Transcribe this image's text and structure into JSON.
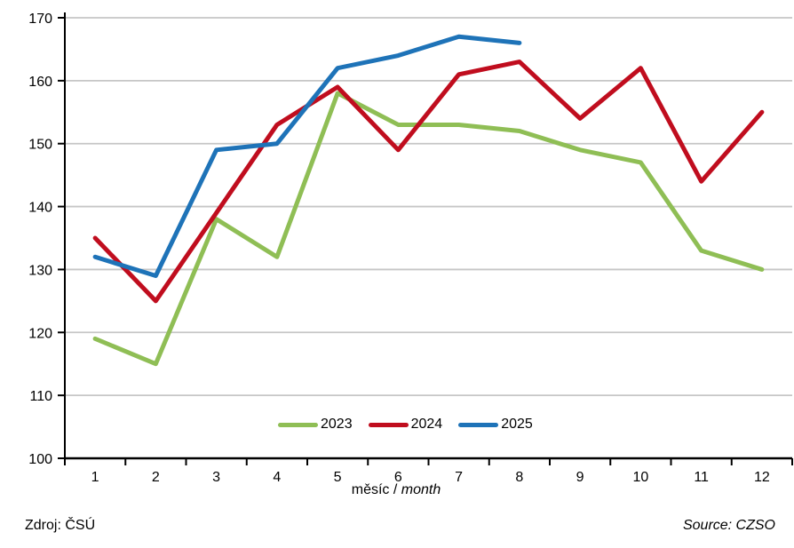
{
  "chart_data": {
    "type": "line",
    "x": [
      1,
      2,
      3,
      4,
      5,
      6,
      7,
      8,
      9,
      10,
      11,
      12
    ],
    "series": [
      {
        "name": "2023",
        "color": "#8FBE55",
        "values": [
          119,
          115,
          138,
          132,
          158,
          153,
          153,
          152,
          149,
          147,
          133,
          130
        ]
      },
      {
        "name": "2024",
        "color": "#C00D1E",
        "values": [
          135,
          125,
          139,
          153,
          159,
          149,
          161,
          163,
          154,
          162,
          144,
          155
        ]
      },
      {
        "name": "2025",
        "color": "#1E73B8",
        "values": [
          132,
          129,
          149,
          150,
          162,
          164,
          167,
          166
        ]
      }
    ],
    "title": "",
    "xlabel": "měsíc / month",
    "xlabel_regular": "měsíc / ",
    "xlabel_italic": "month",
    "ylabel": "",
    "ylim": [
      100,
      170
    ],
    "ytick_step": 10,
    "yticks": [
      100,
      110,
      120,
      130,
      140,
      150,
      160,
      170
    ],
    "grid": true,
    "legend_position": "bottom-center-inside"
  },
  "colors": {
    "gridline": "#C6C6C6",
    "axis": "#000000",
    "text": "#000000"
  },
  "footer": {
    "source_left": "Zdroj: ČSÚ",
    "source_right": "Source: CZSO"
  }
}
